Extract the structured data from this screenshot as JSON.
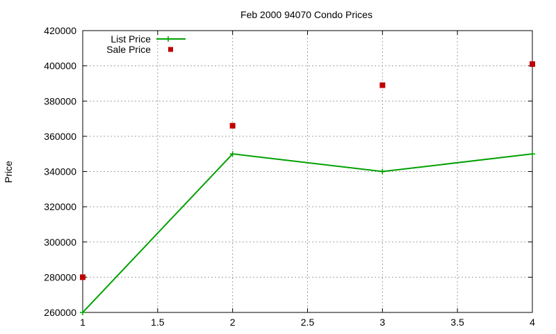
{
  "chart_data": {
    "type": "line",
    "title": "Feb 2000 94070 Condo Prices",
    "xlabel": "",
    "ylabel": "Price",
    "xlim": [
      1,
      4
    ],
    "ylim": [
      260000,
      420000
    ],
    "x_ticks": [
      "1",
      "1.5",
      "2",
      "2.5",
      "3",
      "3.5",
      "4"
    ],
    "y_ticks": [
      "260000",
      "280000",
      "300000",
      "320000",
      "340000",
      "360000",
      "380000",
      "400000",
      "420000"
    ],
    "grid": true,
    "legend_position": "top-left",
    "series": [
      {
        "name": "List Price",
        "style": "linespoints",
        "color": "#00a000",
        "x": [
          1,
          2,
          3,
          4
        ],
        "y": [
          260000,
          350000,
          340000,
          350000
        ]
      },
      {
        "name": "Sale Price",
        "style": "points",
        "color": "#c00000",
        "x": [
          1,
          2,
          3,
          4
        ],
        "y": [
          280000,
          366000,
          389000,
          401000
        ]
      }
    ]
  }
}
